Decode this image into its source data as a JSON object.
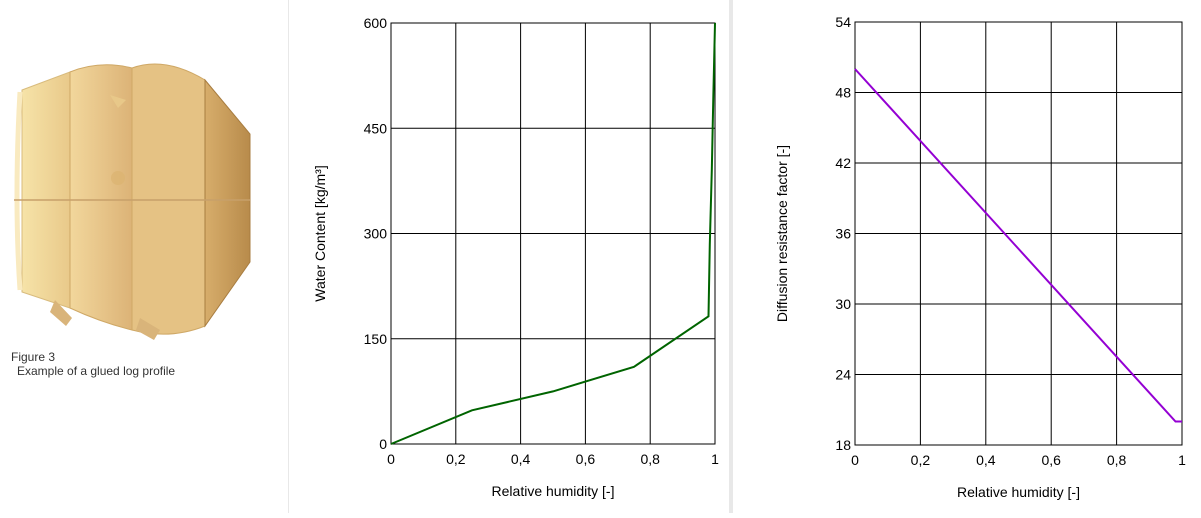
{
  "figure": {
    "caption_line1": "Figure 3",
    "caption_line2": "Example of a glued log profile"
  },
  "chart_data": [
    {
      "type": "line",
      "xlabel": "Relative humidity [-]",
      "ylabel": "Water Content [kg/m³]",
      "xlim": [
        0,
        1
      ],
      "ylim": [
        0,
        600
      ],
      "x_ticks": [
        "0",
        "0,2",
        "0,4",
        "0,6",
        "0,8",
        "1"
      ],
      "y_ticks": [
        "0",
        "150",
        "300",
        "450",
        "600"
      ],
      "grid": true,
      "series": [
        {
          "color": "#006400",
          "x": [
            0,
            0.25,
            0.5,
            0.75,
            0.98,
            0.984,
            0.99,
            0.995,
            1.0
          ],
          "y": [
            0,
            48,
            75,
            110,
            182,
            285,
            390,
            500,
            600
          ]
        }
      ]
    },
    {
      "type": "line",
      "xlabel": "Relative humidity [-]",
      "ylabel": "Diffusion resistance factor [-]",
      "xlim": [
        0,
        1
      ],
      "ylim": [
        18,
        54
      ],
      "x_ticks": [
        "0",
        "0,2",
        "0,4",
        "0,6",
        "0,8",
        "1"
      ],
      "y_ticks": [
        "18",
        "24",
        "30",
        "36",
        "42",
        "48",
        "54"
      ],
      "grid": true,
      "series": [
        {
          "color": "#9400D3",
          "x": [
            0,
            0.98,
            1.0
          ],
          "y": [
            50,
            20,
            20
          ]
        }
      ]
    }
  ]
}
